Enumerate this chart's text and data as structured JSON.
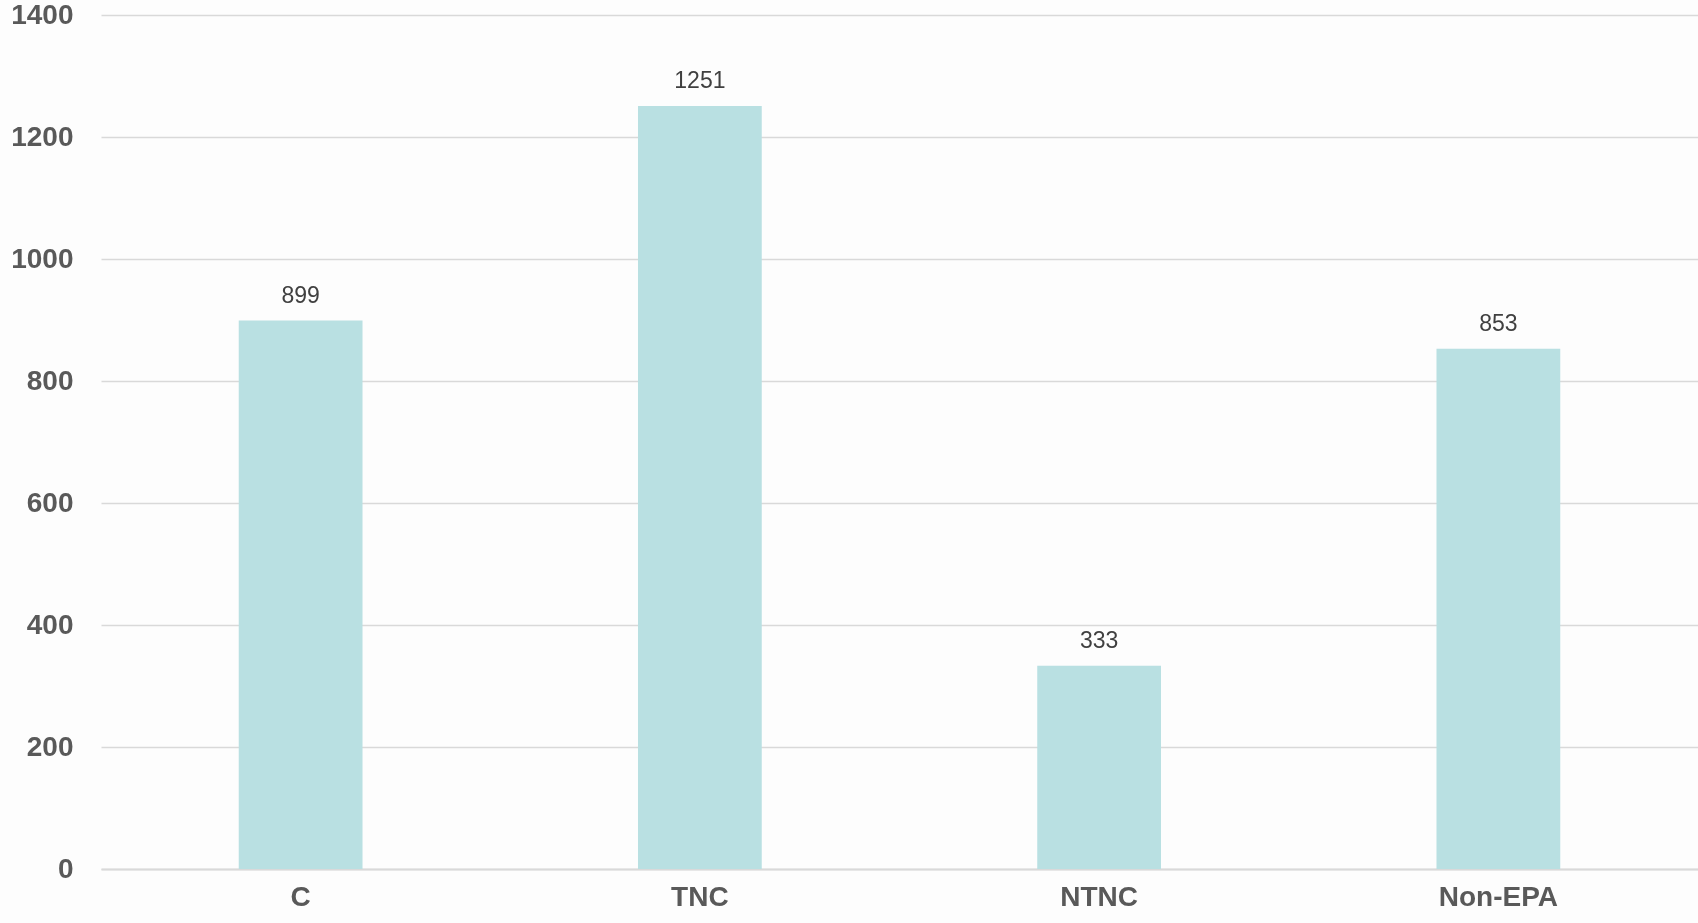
{
  "chart_data": {
    "type": "bar",
    "categories": [
      "C",
      "TNC",
      "NTNC",
      "Non-EPA"
    ],
    "values": [
      899,
      1251,
      333,
      853
    ],
    "color": "#b9e0e2",
    "ylim": [
      0,
      1400
    ],
    "yticks": [
      0,
      200,
      400,
      600,
      800,
      1000,
      1200,
      1400
    ],
    "grid": "y",
    "data_labels": true
  }
}
